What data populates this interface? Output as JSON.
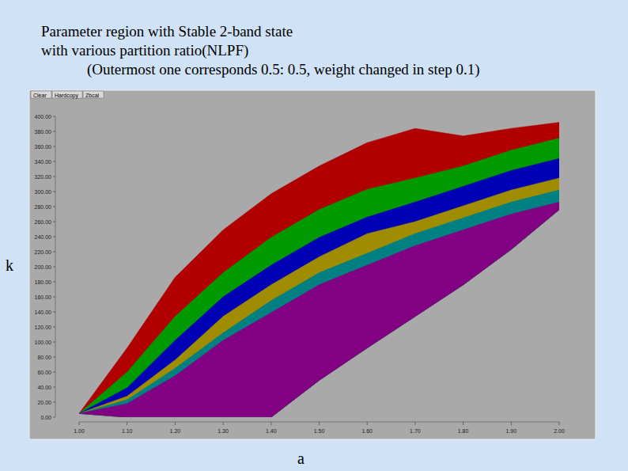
{
  "chart_data": {
    "type": "area",
    "title": [
      "Parameter region with Stable 2-band state",
      "with various partition ratio(NLPF)",
      "(Outermost one corresponds 0.5: 0.5, weight changed in step 0.1)"
    ],
    "x_label": "a",
    "y_label": "k",
    "buttons": [
      "Clear",
      "Hardcopy",
      "Zbcal"
    ],
    "x": [
      1.0,
      1.1,
      1.2,
      1.3,
      1.4,
      1.5,
      1.6,
      1.7,
      1.8,
      1.9,
      2.0
    ],
    "lower_bound": [
      5,
      0,
      0,
      0,
      0,
      49,
      92,
      134,
      176,
      223,
      276
    ],
    "series": [
      {
        "color": "#b00000",
        "values": [
          5,
          92,
          186,
          249,
          297,
          334,
          365,
          384,
          374,
          384,
          392
        ]
      },
      {
        "color": "#009a00",
        "values": [
          5,
          60,
          134,
          192,
          239,
          276,
          303,
          318,
          334,
          355,
          371
        ]
      },
      {
        "color": "#0000b4",
        "values": [
          5,
          39,
          102,
          160,
          202,
          239,
          266,
          286,
          307,
          328,
          344
        ]
      },
      {
        "color": "#a08c00",
        "values": [
          5,
          28,
          76,
          134,
          176,
          213,
          244,
          260,
          281,
          302,
          318
        ]
      },
      {
        "color": "#008080",
        "values": [
          5,
          23,
          65,
          112,
          155,
          192,
          218,
          244,
          265,
          286,
          302
        ]
      },
      {
        "color": "#820082",
        "values": [
          5,
          18,
          55,
          102,
          139,
          176,
          202,
          228,
          249,
          270,
          286
        ]
      }
    ],
    "xlim": [
      1.0,
      2.0
    ],
    "ylim": [
      0,
      400
    ],
    "xticks": [
      {
        "value": 1.0,
        "label": "1.00"
      },
      {
        "value": 1.1,
        "label": "1.10"
      },
      {
        "value": 1.2,
        "label": "1.20"
      },
      {
        "value": 1.3,
        "label": "1.30"
      },
      {
        "value": 1.4,
        "label": "1.40"
      },
      {
        "value": 1.5,
        "label": "1.50"
      },
      {
        "value": 1.6,
        "label": "1.60"
      },
      {
        "value": 1.7,
        "label": "1.70"
      },
      {
        "value": 1.8,
        "label": "1.80"
      },
      {
        "value": 1.9,
        "label": "1.90"
      },
      {
        "value": 2.0,
        "label": "2.00"
      }
    ],
    "yticks": [
      {
        "value": 0,
        "label": "0.00"
      },
      {
        "value": 20,
        "label": "20.00"
      },
      {
        "value": 40,
        "label": "40.00"
      },
      {
        "value": 60,
        "label": "60.00"
      },
      {
        "value": 80,
        "label": "80.00"
      },
      {
        "value": 100,
        "label": "100.00"
      },
      {
        "value": 120,
        "label": "120.00"
      },
      {
        "value": 140,
        "label": "140.00"
      },
      {
        "value": 160,
        "label": "160.00"
      },
      {
        "value": 180,
        "label": "180.00"
      },
      {
        "value": 200,
        "label": "200.00"
      },
      {
        "value": 220,
        "label": "220.00"
      },
      {
        "value": 240,
        "label": "240.00"
      },
      {
        "value": 260,
        "label": "260.00"
      },
      {
        "value": 280,
        "label": "280.00"
      },
      {
        "value": 300,
        "label": "300.00"
      },
      {
        "value": 320,
        "label": "320.00"
      },
      {
        "value": 340,
        "label": "340.00"
      },
      {
        "value": 360,
        "label": "360.00"
      },
      {
        "value": 380,
        "label": "380.00"
      },
      {
        "value": 400,
        "label": "400.00"
      }
    ],
    "grid": false
  }
}
